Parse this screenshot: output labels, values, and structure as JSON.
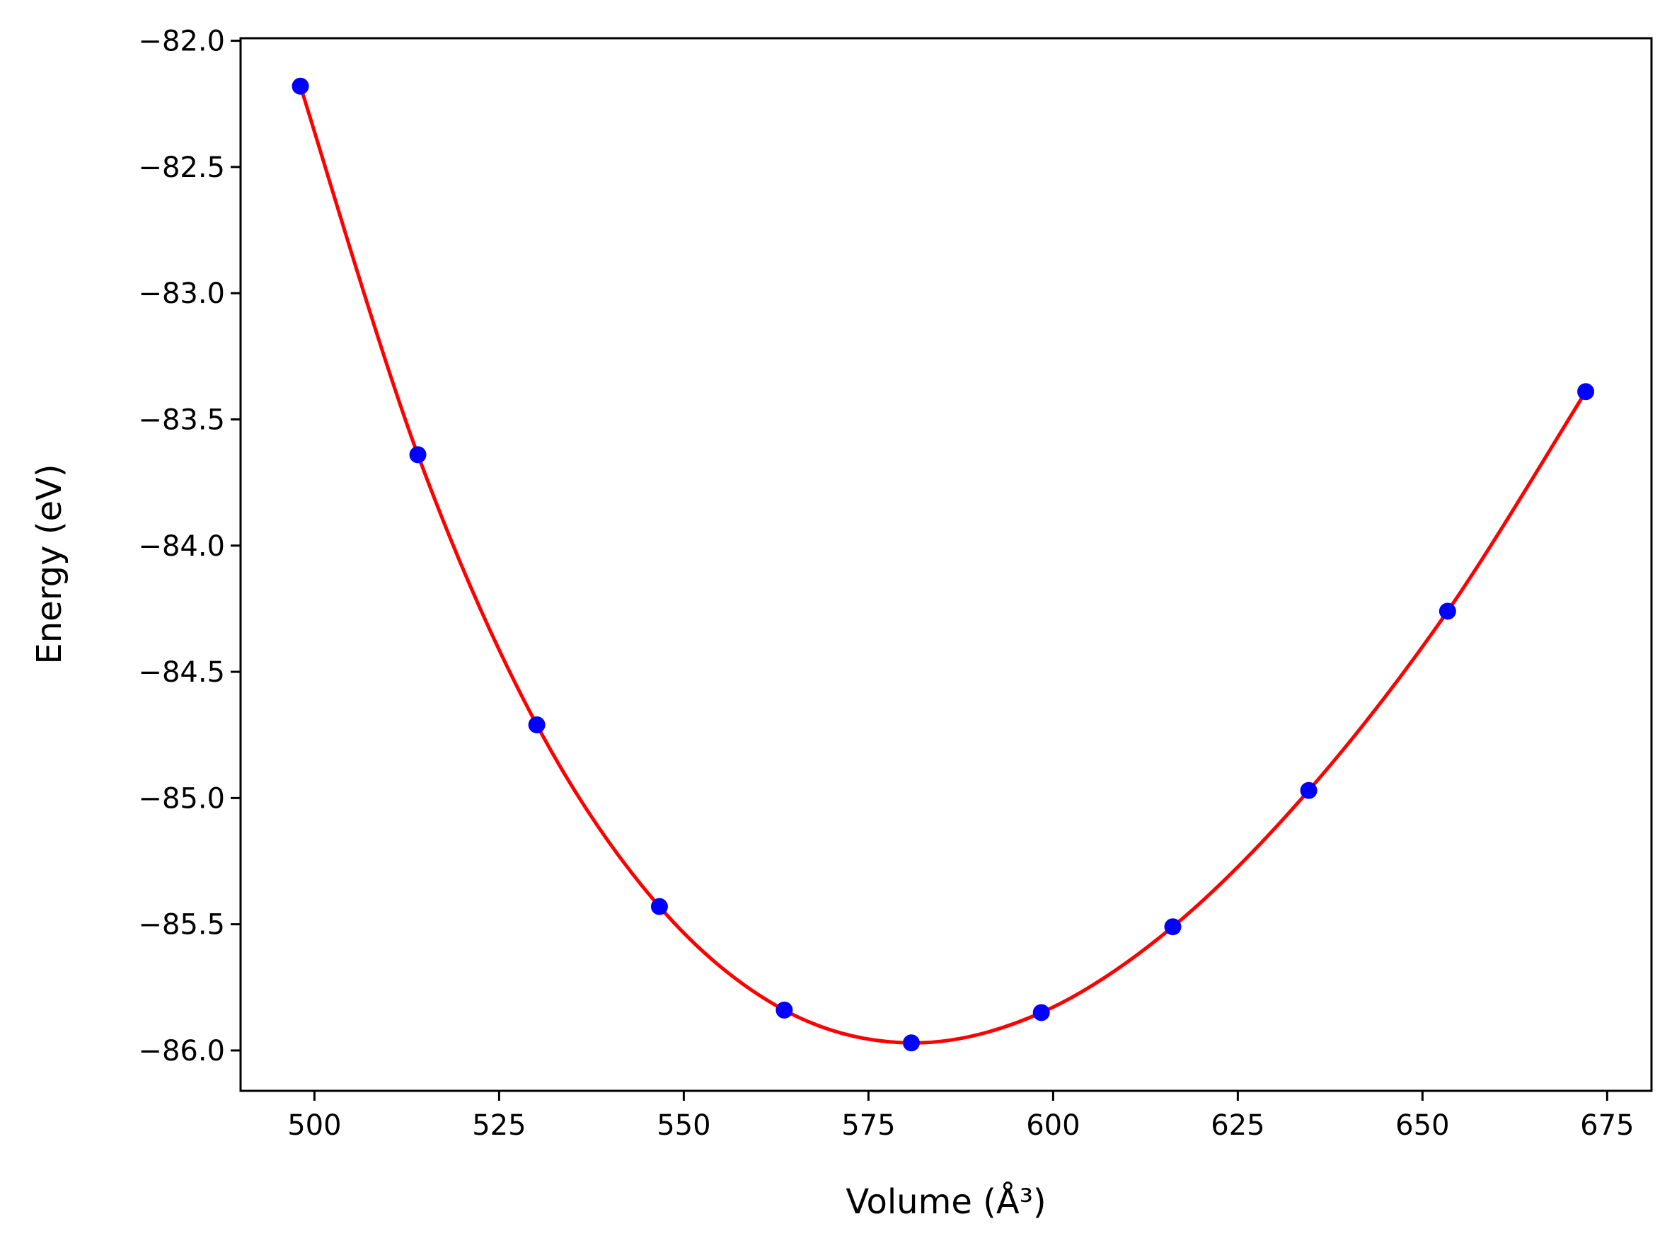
{
  "chart_data": {
    "type": "line",
    "title": "",
    "xlabel": "Volume (Å³)",
    "ylabel": "Energy (eV)",
    "xlim": [
      490,
      681
    ],
    "ylim": [
      -86.16,
      -81.99
    ],
    "xticks": [
      500,
      525,
      550,
      575,
      600,
      625,
      650,
      675
    ],
    "xtick_labels": [
      "500",
      "525",
      "550",
      "575",
      "600",
      "625",
      "650",
      "675"
    ],
    "yticks": [
      -82.0,
      -82.5,
      -83.0,
      -83.5,
      -84.0,
      -84.5,
      -85.0,
      -85.5,
      -86.0
    ],
    "ytick_labels": [
      "−82.0",
      "−82.5",
      "−83.0",
      "−83.5",
      "−84.0",
      "−84.5",
      "−85.0",
      "−85.5",
      "−86.0"
    ],
    "grid": false,
    "series": [
      {
        "kind": "scatter",
        "color": "#0000ff",
        "x": [
          498.1,
          514.0,
          530.1,
          546.7,
          563.6,
          580.8,
          598.4,
          616.2,
          634.6,
          653.4,
          672.1
        ],
        "y": [
          -82.18,
          -83.64,
          -84.71,
          -85.43,
          -85.84,
          -85.97,
          -85.85,
          -85.51,
          -84.97,
          -84.26,
          -83.39
        ]
      },
      {
        "kind": "line",
        "color": "#ff0000",
        "x": [
          498.1,
          514.0,
          530.1,
          546.7,
          563.6,
          580.8,
          598.4,
          616.2,
          634.6,
          653.4,
          672.1
        ],
        "y": [
          -82.18,
          -83.64,
          -84.71,
          -85.43,
          -85.84,
          -85.97,
          -85.85,
          -85.51,
          -84.97,
          -84.26,
          -83.39
        ]
      }
    ]
  }
}
